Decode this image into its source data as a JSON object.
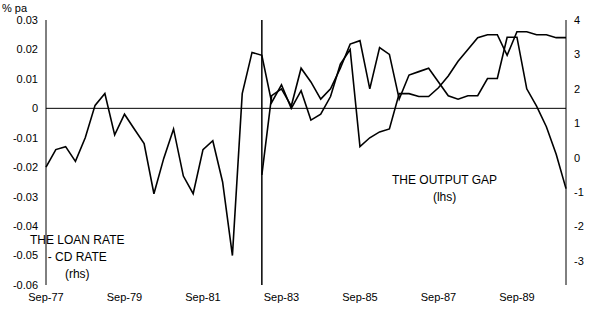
{
  "chart_data": {
    "type": "line",
    "y_label": "% pa",
    "categories": [
      "Sep-77",
      null,
      null,
      null,
      null,
      null,
      null,
      null,
      "Sep-79",
      null,
      null,
      null,
      null,
      null,
      null,
      null,
      "Sep-81",
      null,
      null,
      null,
      null,
      null,
      null,
      null,
      "Sep-83",
      null,
      null,
      null,
      null,
      null,
      null,
      null,
      "Sep-85",
      null,
      null,
      null,
      null,
      null,
      null,
      null,
      "Sep-87",
      null,
      null,
      null,
      null,
      null,
      null,
      null,
      "Sep-89",
      null,
      null,
      null,
      null,
      null
    ],
    "series": [
      {
        "name": "THE LOAN RATE - CD RATE",
        "color": "#000000",
        "values": [
          -0.02,
          -0.014,
          -0.013,
          -0.018,
          -0.01,
          0.001,
          0.005,
          -0.009,
          -0.002,
          -0.007,
          -0.012,
          -0.029,
          -0.017,
          -0.007,
          -0.023,
          -0.029,
          -0.014,
          -0.011,
          -0.025,
          -0.05,
          0.005,
          0.019,
          0.018,
          0.002,
          0.008,
          0,
          0.006,
          -0.004,
          -0.002,
          0.004,
          0.015,
          0.02,
          -0.013,
          -0.01,
          -0.008,
          -0.007,
          0.005,
          0.005,
          0.004,
          0.004,
          0.007,
          0.011,
          0.016,
          0.02,
          0.024,
          0.025,
          0.025,
          0.018,
          0.026,
          0.026,
          0.025,
          0.025,
          0.024,
          0.024
        ]
      },
      {
        "name": "THE OUTPUT GAP",
        "color": "#000000",
        "axis": "y2",
        "values": [
          null,
          null,
          null,
          null,
          null,
          null,
          null,
          null,
          null,
          null,
          null,
          null,
          null,
          null,
          null,
          null,
          null,
          null,
          null,
          null,
          null,
          null,
          -0.5,
          1.8,
          2.0,
          1.5,
          2.6,
          2.2,
          1.7,
          2.0,
          2.6,
          3.3,
          3.4,
          2.0,
          3.2,
          3.0,
          1.7,
          2.4,
          2.5,
          2.6,
          2.2,
          1.8,
          1.7,
          1.8,
          1.8,
          2.3,
          2.3,
          3.5,
          3.5,
          2.0,
          1.5,
          0.9,
          0.1,
          -0.9
        ]
      }
    ],
    "annotations": [
      {
        "lines": [
          "THE LOAN RATE",
          "- CD RATE",
          "(rhs)"
        ]
      },
      {
        "lines": [
          "THE OUTPUT GAP",
          "(lhs)"
        ]
      }
    ],
    "ylim": [
      -0.06,
      0.03
    ],
    "yticks": [
      -0.06,
      -0.05,
      -0.04,
      -0.03,
      -0.02,
      -0.01,
      0,
      0.01,
      0.02,
      0.03
    ],
    "y2lim": [
      -3.7,
      4
    ],
    "y2ticks": [
      -3,
      -2,
      -1,
      0,
      1,
      2,
      3,
      4
    ],
    "reference_lines": {
      "x": 22,
      "y": 0
    }
  }
}
